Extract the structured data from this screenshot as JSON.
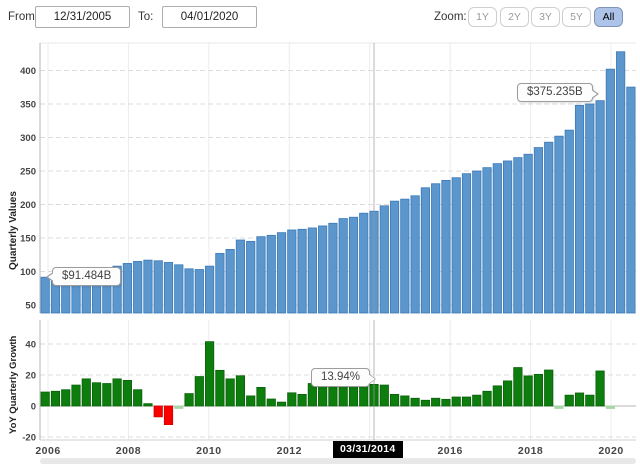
{
  "toolbar": {
    "from_label": "From:",
    "from_value": "12/31/2005",
    "to_label": "To:",
    "to_value": "04/01/2020",
    "zoom_label": "Zoom:",
    "zoom_buttons": [
      "1Y",
      "2Y",
      "3Y",
      "5Y",
      "All"
    ],
    "zoom_selected": "All"
  },
  "tooltips": {
    "first_value": "$91.484B",
    "last_value": "$375.235B",
    "growth_value": "13.94%",
    "crosshair_date": "03/31/2014"
  },
  "colors": {
    "bar_blue": "#5b96cc",
    "bar_blue_border": "#3d7ab8",
    "bar_green": "#0d7e0d",
    "bar_green_border": "#0a600a",
    "bar_red": "#f80000",
    "bar_red_border": "#d40000",
    "bar_flat": "#a5d6a5",
    "selected_zoom_bg": "#aec3e8",
    "grid": "#dcdcdc",
    "crosshair": "#9a9a9a"
  },
  "chart_data": [
    {
      "type": "bar",
      "title": "Quarterly Values",
      "ylabel": "Quarterly Values",
      "period": "quarterly",
      "x_range": [
        "12/31/2005",
        "04/01/2020"
      ],
      "y_ticks": [
        50,
        100,
        150,
        200,
        250,
        300,
        350,
        400
      ],
      "ylim": [
        38,
        445
      ],
      "x_tick_labels": [
        "2006",
        "2008",
        "2010",
        "2012",
        "",
        "2016",
        "2018",
        "2020"
      ],
      "grid": "dashed-horizontal",
      "first_bar_value_billions": 91.484,
      "last_bar_value_billions": 375.235,
      "values": [
        91.484,
        95,
        96.5,
        98,
        100,
        103,
        105,
        108,
        112,
        115,
        117,
        116,
        113.5,
        110,
        104,
        103,
        108,
        127,
        133,
        147,
        145,
        152,
        154,
        158,
        162,
        163,
        165,
        168,
        172,
        179,
        181,
        187,
        190,
        198,
        205,
        208,
        213,
        225,
        231,
        236,
        240,
        246,
        250,
        255,
        261,
        265,
        270,
        275,
        285,
        293,
        302,
        311,
        348,
        350,
        355,
        402,
        428,
        375.235
      ]
    },
    {
      "type": "bar",
      "title": "YoY Quarterly Growth",
      "ylabel": "YoY Quarterly Growth",
      "period": "quarterly",
      "y_ticks": [
        -20,
        0,
        20,
        40
      ],
      "ylim": [
        -22,
        52
      ],
      "x_tick_labels": [
        "2006",
        "2008",
        "2010",
        "2012",
        "",
        "2016",
        "2018",
        "2020"
      ],
      "grid": "dashed-horizontal",
      "highlighted_bar": {
        "date": "03/31/2014",
        "value_percent": 13.94
      },
      "values": [
        9,
        9.5,
        10.5,
        13.5,
        17.5,
        15,
        14.5,
        17.5,
        16.5,
        10.5,
        1.5,
        -7,
        -12,
        -0.5,
        8,
        19,
        41.5,
        23,
        17.5,
        19.5,
        6.5,
        12,
        4.5,
        2.5,
        8.5,
        7.5,
        14.5,
        14.5,
        14.2,
        14,
        14.3,
        14,
        13.94,
        13.5,
        7.5,
        6.5,
        5,
        3.7,
        5,
        4.3,
        5.8,
        5.8,
        7,
        9.5,
        13,
        16.2,
        24.8,
        19.4,
        20.4,
        23.2,
        -0.3,
        7,
        8.4,
        7,
        22.6,
        -0.5
      ]
    }
  ]
}
